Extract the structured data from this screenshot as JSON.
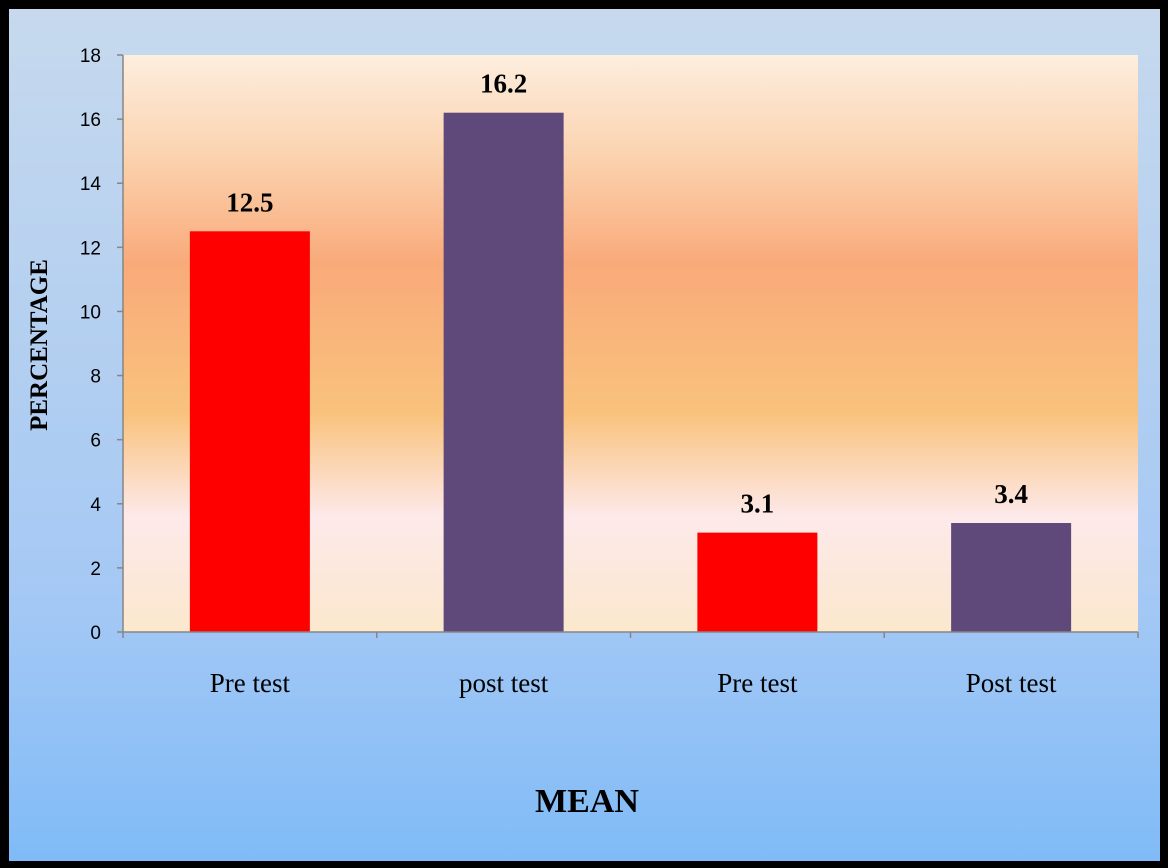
{
  "chart_data": {
    "type": "bar",
    "title": "",
    "xlabel": "MEAN",
    "ylabel": "PERCENTAGE",
    "ylim": [
      0,
      18
    ],
    "yticks": [
      0,
      2,
      4,
      6,
      8,
      10,
      12,
      14,
      16,
      18
    ],
    "categories": [
      "Pre test",
      "post test",
      "Pre test",
      "Post test"
    ],
    "values": [
      12.5,
      16.2,
      3.1,
      3.4
    ],
    "data_labels": [
      "12.5",
      "16.2",
      "3.1",
      "3.4"
    ],
    "bar_colors": [
      "#ff0000",
      "#5f497a",
      "#ff0000",
      "#5f497a"
    ],
    "grid": false,
    "legend": "none"
  }
}
